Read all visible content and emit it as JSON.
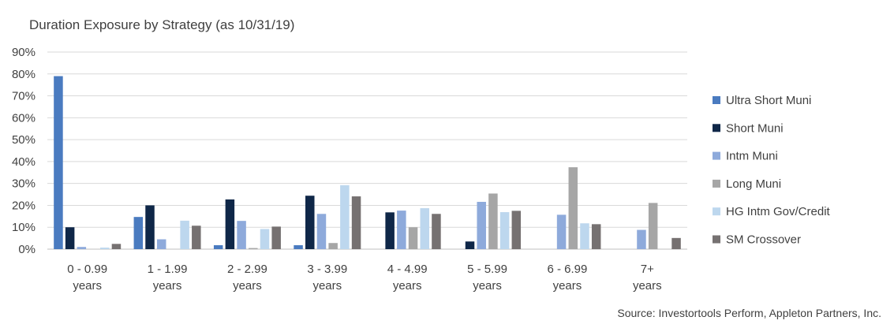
{
  "chart_data": {
    "type": "bar",
    "title": "Duration Exposure by Strategy (as 10/31/19)",
    "source": "Source: Investortools Perform, Appleton Partners, Inc.",
    "categories": [
      [
        "0 - 0.99",
        "years"
      ],
      [
        "1 - 1.99",
        "years"
      ],
      [
        "2 - 2.99",
        "years"
      ],
      [
        "3 - 3.99",
        "years"
      ],
      [
        "4 - 4.99",
        "years"
      ],
      [
        "5 - 5.99",
        "years"
      ],
      [
        "6 - 6.99",
        "years"
      ],
      [
        "7+",
        "years"
      ]
    ],
    "y_ticks": [
      "0%",
      "10%",
      "20%",
      "30%",
      "40%",
      "50%",
      "60%",
      "70%",
      "80%",
      "90%"
    ],
    "ylim": [
      0,
      90
    ],
    "grid": true,
    "legend_position": "right",
    "series": [
      {
        "name": "Ultra Short Muni",
        "color": "#4a7bc0",
        "values": [
          79,
          14.7,
          1.8,
          1.8,
          0,
          0,
          0,
          0
        ]
      },
      {
        "name": "Short Muni",
        "color": "#0f2748",
        "values": [
          10,
          20,
          22.7,
          24.4,
          16.8,
          3.5,
          0,
          0
        ]
      },
      {
        "name": "Intm Muni",
        "color": "#8eaadb",
        "values": [
          1,
          4.5,
          12.9,
          16.1,
          17.6,
          21.6,
          15.7,
          8.8
        ]
      },
      {
        "name": "Long Muni",
        "color": "#a6a6a6",
        "values": [
          0,
          0,
          0.5,
          2.8,
          10,
          25.4,
          37.4,
          21.1
        ]
      },
      {
        "name": "HG Intm Gov/Credit",
        "color": "#bdd7ee",
        "values": [
          0.7,
          13,
          9.2,
          29.2,
          18.7,
          16.9,
          11.8,
          0
        ]
      },
      {
        "name": "SM Crossover",
        "color": "#767171",
        "values": [
          2.4,
          10.7,
          10.3,
          24.1,
          16.1,
          17.5,
          11.4,
          5.1
        ]
      }
    ]
  }
}
